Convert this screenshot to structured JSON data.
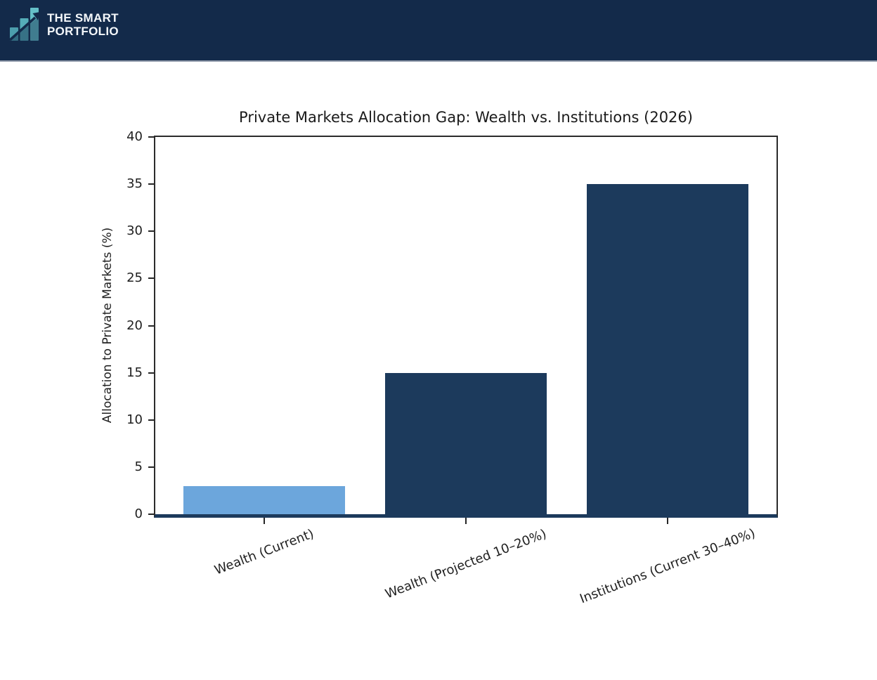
{
  "brand": {
    "name_line1": "THE SMART",
    "name_line2": "PORTFOLIO",
    "logo_icon": "bar-chart-with-arrow-icon",
    "colors": {
      "header_bg": "#132A4A",
      "logo_teal_dark": "#4C9EAD",
      "logo_teal_mid": "#55ADB8",
      "logo_teal_light": "#65C0C8",
      "brand_text": "#F4F7FA"
    }
  },
  "chart_data": {
    "type": "bar",
    "title": "Private Markets Allocation Gap: Wealth vs. Institutions (2026)",
    "ylabel": "Allocation to Private Markets (%)",
    "xlabel": "",
    "categories": [
      "Wealth (Current)",
      "Wealth (Projected 10–20%)",
      "Institutions (Current 30–40%)"
    ],
    "values": [
      3,
      15,
      35
    ],
    "bar_colors": [
      "#6CA6DC",
      "#1C3A5C",
      "#1C3A5C"
    ],
    "ylim": [
      0,
      40
    ],
    "yticks": [
      0,
      5,
      10,
      15,
      20,
      25,
      30,
      35,
      40
    ],
    "grid": false,
    "legend_position": "none",
    "x_tick_rotation_deg": 21,
    "axis_baseline_color": "#1C3A5C",
    "text_color": "#1F1F1F"
  }
}
